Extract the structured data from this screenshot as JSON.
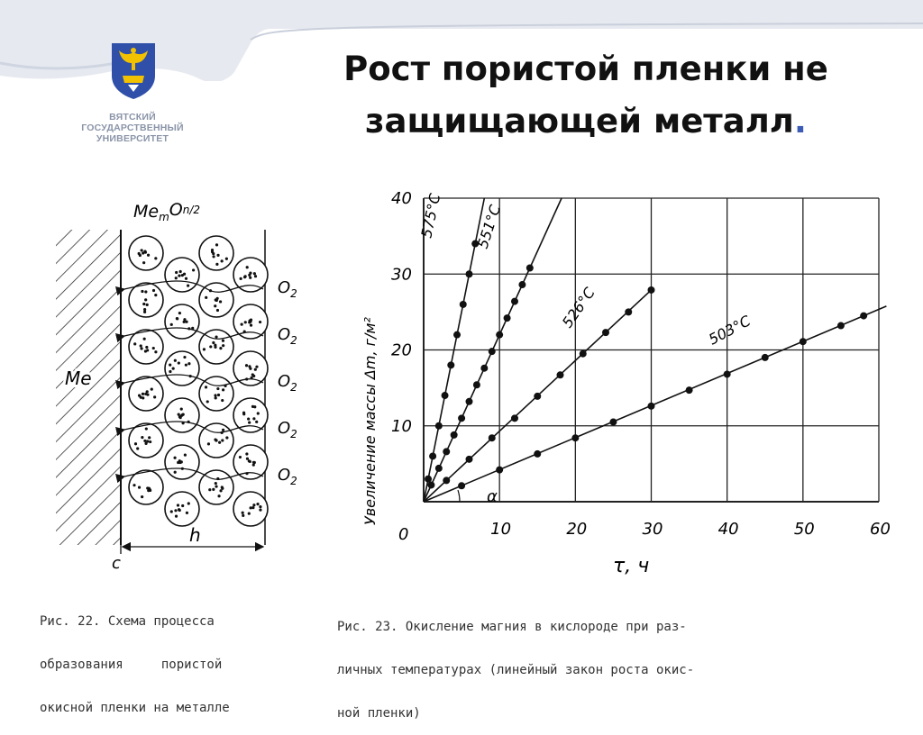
{
  "header": {
    "university_lines": [
      "ВЯТСКИЙ",
      "ГОСУДАРСТВЕННЫЙ",
      "УНИВЕРСИТЕТ"
    ]
  },
  "title": {
    "line1": "Рост пористой пленки не",
    "line2": "защищающей металл",
    "period": "."
  },
  "figure22": {
    "top_label": "Me",
    "top_label_sub": "m",
    "top_label_mid": "O",
    "top_label_tail": "n/2",
    "me_label": "Me",
    "o2_label": "O",
    "o2_sub": "2",
    "c_label": "c",
    "h_label": "h",
    "caption": [
      "Рис. 22. Схема процесса",
      "образования     пористой",
      "окисной пленки на металле"
    ]
  },
  "figure23": {
    "caption": [
      "Рис. 23. Окисление магния в кислороде при раз-",
      "личных температурах (линейный закон роста окис-",
      "ной пленки)"
    ],
    "alpha_label": "α",
    "origin_label": "0"
  },
  "chart_data": {
    "type": "line",
    "title": "",
    "xlabel": "τ, ч",
    "ylabel": "Увеличение массы Δm, г/м²",
    "xlim": [
      0,
      60
    ],
    "ylim": [
      0,
      40
    ],
    "xticks": [
      "10",
      "20",
      "30",
      "40",
      "50",
      "60"
    ],
    "yticks": [
      "10",
      "20",
      "30",
      "40"
    ],
    "grid": true,
    "series": [
      {
        "name": "575°C",
        "x": [
          0,
          0.6,
          1.2,
          2,
          2.8,
          3.6,
          4.4,
          5.2,
          6,
          6.8
        ],
        "y": [
          0,
          3,
          6,
          10,
          14,
          18,
          22,
          26,
          30,
          34
        ]
      },
      {
        "name": "551°C",
        "x": [
          0,
          1,
          2,
          3,
          4,
          5,
          6,
          7,
          8,
          9,
          10,
          11,
          12,
          13,
          14
        ],
        "y": [
          0,
          2.2,
          4.4,
          6.6,
          8.8,
          11,
          13.2,
          15.4,
          17.6,
          19.8,
          22,
          24.2,
          26.4,
          28.6,
          30.8
        ]
      },
      {
        "name": "526°C",
        "x": [
          0,
          3,
          6,
          9,
          12,
          15,
          18,
          21,
          24,
          27,
          30
        ],
        "y": [
          0,
          2.8,
          5.6,
          8.4,
          11,
          13.9,
          16.7,
          19.5,
          22.3,
          25,
          27.9
        ]
      },
      {
        "name": "503°C",
        "x": [
          0,
          5,
          10,
          15,
          20,
          25,
          30,
          35,
          40,
          45,
          50,
          55,
          58
        ],
        "y": [
          0,
          2.1,
          4.2,
          6.3,
          8.4,
          10.5,
          12.6,
          14.7,
          16.8,
          19,
          21.1,
          23.2,
          24.5
        ]
      }
    ]
  }
}
